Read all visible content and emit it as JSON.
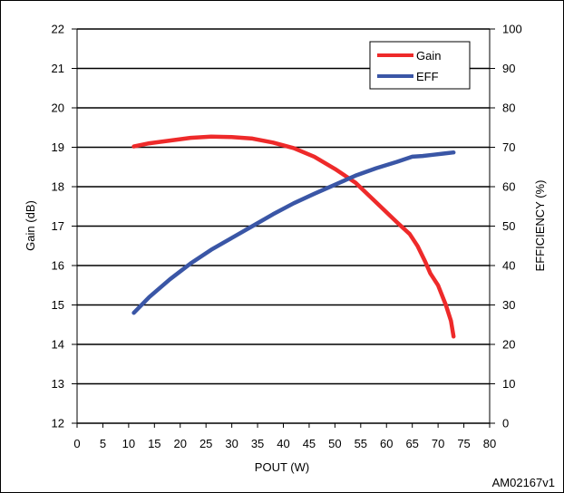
{
  "chart_data": {
    "type": "line",
    "xlabel": "POUT (W)",
    "ylabel_left": "Gain (dB)",
    "ylabel_right": "EFFICIENCY (%)",
    "xlim": [
      0,
      80
    ],
    "ylim_left": [
      12,
      22
    ],
    "ylim_right": [
      0,
      100
    ],
    "x_ticks": [
      0,
      5,
      10,
      15,
      20,
      25,
      30,
      35,
      40,
      45,
      50,
      55,
      60,
      65,
      70,
      75,
      80
    ],
    "y_left_ticks": [
      12,
      13,
      14,
      15,
      16,
      17,
      18,
      19,
      20,
      21,
      22
    ],
    "y_right_ticks": [
      0,
      10,
      20,
      30,
      40,
      50,
      60,
      70,
      80,
      90,
      100
    ],
    "grid": "horizontal",
    "legend_position": "top-right",
    "series": [
      {
        "name": "Gain",
        "axis": "left",
        "color": "#ee2a2a",
        "x": [
          11,
          14,
          18,
          22,
          26,
          30,
          34,
          38,
          42,
          46,
          50,
          54,
          58,
          62,
          64.5,
          66,
          67.5,
          68.5,
          70,
          71.5,
          72.5,
          73
        ],
        "y": [
          19.02,
          19.1,
          19.17,
          19.24,
          19.27,
          19.26,
          19.22,
          19.12,
          18.98,
          18.76,
          18.45,
          18.1,
          17.6,
          17.1,
          16.8,
          16.5,
          16.1,
          15.8,
          15.5,
          15.0,
          14.6,
          14.2
        ]
      },
      {
        "name": "EFF",
        "axis": "right",
        "color": "#3a56a6",
        "x": [
          11,
          14,
          18,
          22,
          26,
          30,
          34,
          38,
          42,
          46,
          50,
          54,
          58,
          62,
          65,
          67,
          69,
          71,
          73
        ],
        "y": [
          28,
          32,
          36.5,
          40.5,
          44,
          47,
          50,
          53,
          55.8,
          58.2,
          60.5,
          62.8,
          64.7,
          66.3,
          67.6,
          67.8,
          68.1,
          68.4,
          68.7
        ]
      }
    ]
  },
  "footnote": "AM02167v1"
}
